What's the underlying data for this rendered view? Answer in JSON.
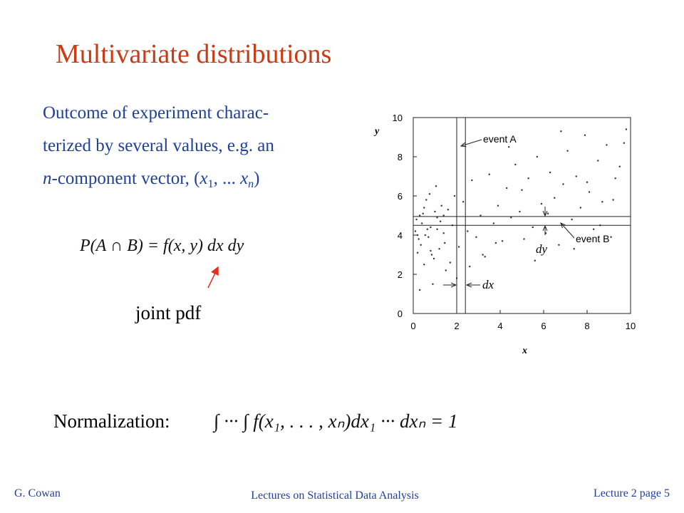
{
  "slide": {
    "title": "Multivariate distributions",
    "body": {
      "line1": "Outcome of experiment charac-",
      "line2": "terized by several values, e.g. an",
      "line3_parts": [
        "n",
        "-component  vector, (",
        "x",
        "1",
        ", ... ",
        "x",
        "n",
        ")"
      ]
    },
    "formula": "P(A ∩ B) = f(x, y) dx dy",
    "joint_label": "joint pdf",
    "normalization_label": "Normalization:",
    "normalization_formula": "∫ ··· ∫ f(x₁, . . . , xₙ)dx₁ ··· dxₙ = 1"
  },
  "footer": {
    "left": "G. Cowan",
    "center": "Lectures on Statistical Data Analysis",
    "right": "Lecture 2  page 5"
  },
  "chart_data": {
    "type": "scatter",
    "x_label": "x",
    "y_label": "y",
    "xlim": [
      0,
      10
    ],
    "ylim": [
      0,
      10
    ],
    "xticks": [
      0,
      2,
      4,
      6,
      8,
      10
    ],
    "yticks": [
      0,
      2,
      4,
      6,
      8,
      10
    ],
    "vlines": [
      2,
      2.4
    ],
    "hlines": [
      4.5,
      4.95
    ],
    "annotations": [
      "event A",
      "event B",
      "dy",
      "dx"
    ],
    "series": [
      {
        "color": "#333333",
        "x": [
          0.1,
          0.2,
          0.3,
          0.4,
          0.5,
          0.6,
          0.7,
          0.8,
          0.9,
          1.0,
          0.15,
          0.35,
          0.55,
          0.75,
          0.95,
          1.1,
          1.2,
          1.3,
          1.4,
          1.5,
          0.25,
          0.45,
          0.65,
          0.85,
          1.05,
          1.25,
          1.45,
          1.6,
          1.7,
          1.8,
          1.9,
          2.1,
          2.3,
          2.5,
          2.7,
          2.9,
          3.1,
          3.3,
          3.5,
          3.7,
          3.9,
          4.1,
          4.3,
          4.5,
          4.7,
          4.9,
          5.1,
          5.3,
          5.5,
          5.7,
          5.9,
          6.1,
          6.3,
          6.5,
          6.7,
          6.9,
          7.1,
          7.3,
          7.5,
          7.7,
          7.9,
          8.1,
          8.3,
          8.5,
          8.7,
          8.9,
          9.1,
          9.3,
          9.5,
          9.7,
          0.2,
          0.5,
          0.8,
          1.1,
          1.4,
          2.0,
          2.6,
          3.2,
          3.8,
          4.4,
          5.0,
          5.6,
          6.2,
          6.8,
          7.4,
          8.0,
          8.6,
          9.2,
          9.8,
          0.3
        ],
        "y": [
          4.2,
          3.1,
          5.0,
          4.6,
          2.5,
          5.8,
          3.9,
          4.4,
          1.5,
          5.2,
          4.8,
          3.5,
          4.0,
          6.1,
          2.8,
          4.9,
          3.3,
          5.5,
          4.1,
          2.2,
          3.8,
          5.1,
          4.3,
          3.0,
          6.5,
          4.7,
          3.6,
          5.3,
          2.6,
          4.5,
          6.0,
          3.4,
          5.7,
          4.2,
          6.8,
          3.9,
          5.0,
          2.9,
          7.1,
          4.6,
          5.5,
          3.7,
          6.4,
          4.9,
          7.6,
          5.2,
          3.8,
          6.9,
          4.4,
          8.0,
          5.6,
          4.1,
          7.2,
          5.9,
          3.5,
          6.6,
          8.3,
          4.8,
          7.0,
          5.4,
          9.1,
          6.2,
          4.3,
          7.8,
          5.7,
          8.6,
          3.9,
          6.9,
          7.5,
          8.7,
          4.0,
          5.4,
          3.2,
          4.3,
          5.0,
          1.8,
          2.4,
          3.0,
          3.6,
          8.5,
          6.3,
          2.7,
          5.1,
          9.3,
          3.3,
          6.7,
          4.5,
          5.8,
          9.4,
          1.2
        ]
      }
    ]
  }
}
